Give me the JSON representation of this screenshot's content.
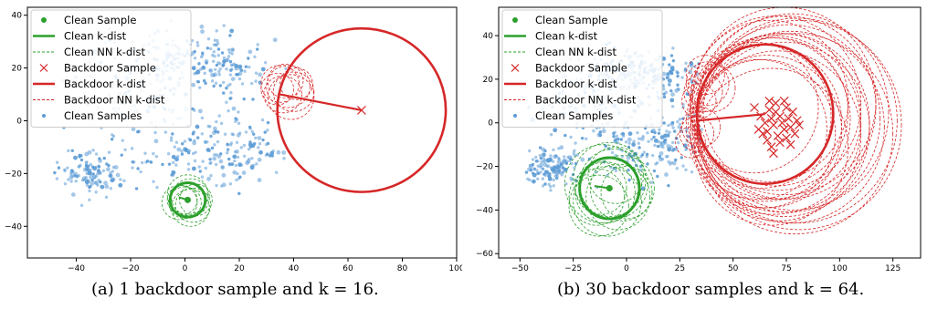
{
  "colors": {
    "clean": "#2ca02c",
    "backdoor": "#d62728",
    "samples": "#5b9bd5"
  },
  "captions": [
    "(a) 1 backdoor sample and k = 16.",
    "(b) 30 backdoor samples and k = 64."
  ],
  "chart_data": [
    {
      "type": "scatter",
      "title": "",
      "xlabel": "",
      "ylabel": "",
      "xlim": [
        -58,
        100
      ],
      "ylim": [
        -52,
        43
      ],
      "grid": false,
      "legend_position": "top-left",
      "xticks": [
        -40,
        -20,
        0,
        20,
        40,
        60,
        80,
        100
      ],
      "yticks": [
        -40,
        -20,
        0,
        20,
        40
      ],
      "legend": [
        "Clean Sample",
        "Clean k-dist",
        "Clean NN k-dist",
        "Backdoor Sample",
        "Backdoor k-dist",
        "Backdoor NN k-dist",
        "Clean Samples"
      ],
      "clean_sample": {
        "x": 1,
        "y": -30
      },
      "clean_kdist_radius": 6.5,
      "clean_nn_circles": [
        {
          "x": 0,
          "y": -31,
          "r": 6
        },
        {
          "x": 2,
          "y": -29,
          "r": 7
        },
        {
          "x": -1,
          "y": -30,
          "r": 5.5
        },
        {
          "x": 3,
          "y": -32,
          "r": 6.5
        },
        {
          "x": 1,
          "y": -28,
          "r": 7.5
        },
        {
          "x": 4,
          "y": -30,
          "r": 6
        },
        {
          "x": -2,
          "y": -31,
          "r": 6.5
        },
        {
          "x": 2,
          "y": -33,
          "r": 7
        }
      ],
      "backdoor_samples": [
        {
          "x": 65,
          "y": 4
        }
      ],
      "backdoor_kdist": {
        "center": {
          "x": 65,
          "y": 4
        },
        "radius": 31,
        "nn": {
          "x": 35,
          "y": 10
        }
      },
      "backdoor_nn_circles": [
        {
          "x": 36,
          "y": 10,
          "r": 7
        },
        {
          "x": 38,
          "y": 13,
          "r": 8
        },
        {
          "x": 34,
          "y": 12,
          "r": 6
        },
        {
          "x": 40,
          "y": 11,
          "r": 7.5
        },
        {
          "x": 37,
          "y": 15,
          "r": 6.5
        },
        {
          "x": 39,
          "y": 9,
          "r": 8.5
        },
        {
          "x": 35,
          "y": 14,
          "r": 7
        },
        {
          "x": 41,
          "y": 14,
          "r": 6
        }
      ]
    },
    {
      "type": "scatter",
      "title": "",
      "xlabel": "",
      "ylabel": "",
      "xlim": [
        -60,
        138
      ],
      "ylim": [
        -62,
        53
      ],
      "grid": false,
      "legend_position": "top-left",
      "xticks": [
        -50,
        -25,
        0,
        25,
        50,
        75,
        100,
        125
      ],
      "yticks": [
        -60,
        -40,
        -20,
        0,
        20,
        40
      ],
      "legend": [
        "Clean Sample",
        "Clean k-dist",
        "Clean NN k-dist",
        "Backdoor Sample",
        "Backdoor k-dist",
        "Backdoor NN k-dist",
        "Clean Samples"
      ],
      "clean_sample": {
        "x": -8,
        "y": -30
      },
      "clean_kdist_radius": 14,
      "clean_nn_circles": [
        {
          "x": -10,
          "y": -32,
          "r": 14
        },
        {
          "x": -6,
          "y": -28,
          "r": 16
        },
        {
          "x": -12,
          "y": -30,
          "r": 12
        },
        {
          "x": -4,
          "y": -34,
          "r": 15
        },
        {
          "x": -8,
          "y": -26,
          "r": 17
        },
        {
          "x": -14,
          "y": -34,
          "r": 13
        },
        {
          "x": -2,
          "y": -30,
          "r": 15
        },
        {
          "x": -9,
          "y": -36,
          "r": 16
        },
        {
          "x": -5,
          "y": -24,
          "r": 13
        },
        {
          "x": -11,
          "y": -28,
          "r": 18
        },
        {
          "x": 0,
          "y": -32,
          "r": 12
        },
        {
          "x": -13,
          "y": -38,
          "r": 14
        }
      ],
      "backdoor_samples": [
        {
          "x": 60,
          "y": 7
        },
        {
          "x": 63,
          "y": 3
        },
        {
          "x": 65,
          "y": 0
        },
        {
          "x": 66,
          "y": -4
        },
        {
          "x": 67,
          "y": 6
        },
        {
          "x": 68,
          "y": 2
        },
        {
          "x": 69,
          "y": -1
        },
        {
          "x": 70,
          "y": 5
        },
        {
          "x": 71,
          "y": -6
        },
        {
          "x": 72,
          "y": 3
        },
        {
          "x": 73,
          "y": 0
        },
        {
          "x": 74,
          "y": -3
        },
        {
          "x": 75,
          "y": 7
        },
        {
          "x": 76,
          "y": 2
        },
        {
          "x": 77,
          "y": -2
        },
        {
          "x": 78,
          "y": 5
        },
        {
          "x": 79,
          "y": -5
        },
        {
          "x": 80,
          "y": 1
        },
        {
          "x": 66,
          "y": -8
        },
        {
          "x": 68,
          "y": -11
        },
        {
          "x": 64,
          "y": -5
        },
        {
          "x": 70,
          "y": 9
        },
        {
          "x": 72,
          "y": -9
        },
        {
          "x": 75,
          "y": -7
        },
        {
          "x": 62,
          "y": -3
        },
        {
          "x": 81,
          "y": -1
        },
        {
          "x": 67,
          "y": 10
        },
        {
          "x": 74,
          "y": 10
        },
        {
          "x": 69,
          "y": -14
        },
        {
          "x": 77,
          "y": -10
        }
      ],
      "backdoor_kdist": {
        "center": {
          "x": 65,
          "y": 4
        },
        "radius": 32,
        "nn": {
          "x": 33,
          "y": 1
        }
      },
      "backdoor_nn_circles": [
        {
          "x": 60,
          "y": 7,
          "r": 30
        },
        {
          "x": 63,
          "y": 3,
          "r": 33
        },
        {
          "x": 66,
          "y": -4,
          "r": 35
        },
        {
          "x": 68,
          "y": 2,
          "r": 37
        },
        {
          "x": 70,
          "y": 5,
          "r": 34
        },
        {
          "x": 72,
          "y": 3,
          "r": 38
        },
        {
          "x": 74,
          "y": -3,
          "r": 40
        },
        {
          "x": 76,
          "y": 2,
          "r": 43
        },
        {
          "x": 78,
          "y": 5,
          "r": 45
        },
        {
          "x": 80,
          "y": 1,
          "r": 47
        },
        {
          "x": 65,
          "y": 0,
          "r": 36
        },
        {
          "x": 69,
          "y": -1,
          "r": 41
        },
        {
          "x": 75,
          "y": 7,
          "r": 42
        },
        {
          "x": 77,
          "y": -2,
          "r": 44
        },
        {
          "x": 62,
          "y": -3,
          "r": 32
        },
        {
          "x": 71,
          "y": -6,
          "r": 39
        },
        {
          "x": 64,
          "y": -5,
          "r": 34
        },
        {
          "x": 79,
          "y": -5,
          "r": 46
        },
        {
          "x": 67,
          "y": 10,
          "r": 37
        },
        {
          "x": 73,
          "y": 0,
          "r": 41
        },
        {
          "x": 81,
          "y": -1,
          "r": 48
        },
        {
          "x": 70,
          "y": 9,
          "r": 40
        },
        {
          "x": 74,
          "y": 10,
          "r": 43
        },
        {
          "x": 68,
          "y": -11,
          "r": 36
        },
        {
          "x": 36,
          "y": 14,
          "r": 9
        },
        {
          "x": 38,
          "y": 18,
          "r": 10
        },
        {
          "x": 34,
          "y": 10,
          "r": 8
        },
        {
          "x": 40,
          "y": 16,
          "r": 11
        },
        {
          "x": 37,
          "y": 22,
          "r": 9
        },
        {
          "x": 33,
          "y": -5,
          "r": 8
        },
        {
          "x": 30,
          "y": -9,
          "r": 7
        },
        {
          "x": 35,
          "y": -2,
          "r": 9
        }
      ]
    }
  ]
}
